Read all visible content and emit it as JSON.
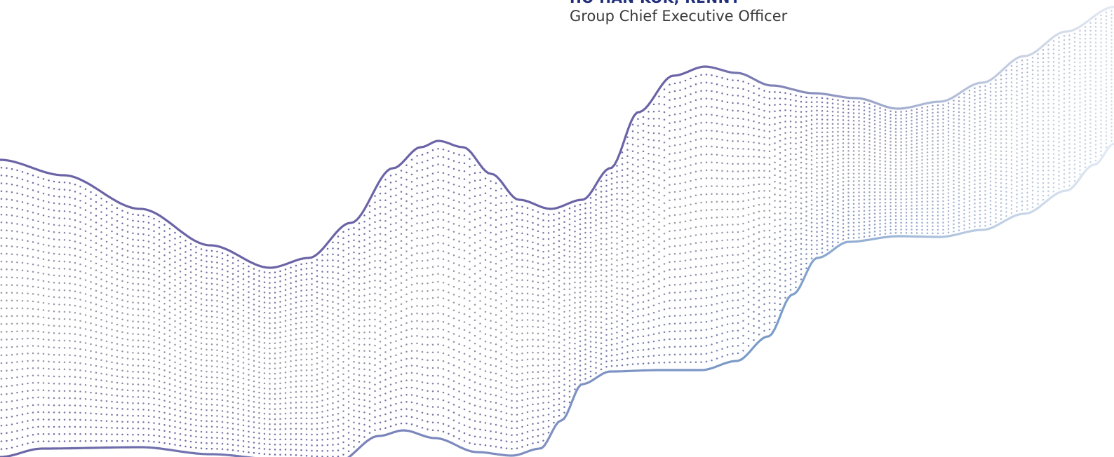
{
  "signatory": {
    "name": "HO HAN KOK, RENNY",
    "title": "Group Chief Executive Officer",
    "name_color": "#1f2d7a",
    "title_color": "#3a3a3a"
  },
  "wave_graphic": {
    "icon": "dotted-wave-graphic",
    "colors": {
      "purple": "#6a64a6",
      "grey": "#9a9aa4",
      "blue": "#7a9cc8",
      "pale": "#dde6f0"
    }
  }
}
